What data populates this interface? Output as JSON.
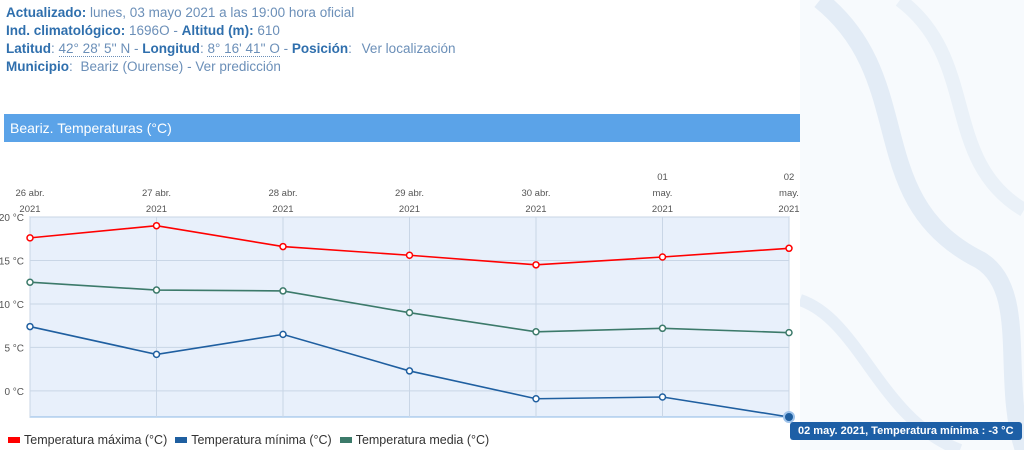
{
  "info": {
    "actualizado_label": "Actualizado",
    "actualizado_value": "lunes, 03 mayo 2021 a las 19:00 hora oficial",
    "ind_label": "Ind. climatológico",
    "ind_value": "1696O",
    "altitud_label": "Altitud (m)",
    "altitud_value": "610",
    "latitud_label": "Latitud",
    "latitud_value": "42° 28' 5'' N",
    "longitud_label": "Longitud",
    "longitud_value": "8° 16' 41'' O",
    "posicion_label": "Posición",
    "posicion_link": "Ver localización",
    "municipio_label": "Municipio",
    "municipio_value": "Beariz (Ourense)",
    "municipio_link": "Ver predicción"
  },
  "panel": {
    "title": "Beariz. Temperaturas (°C)"
  },
  "colors": {
    "max": "#ff0000",
    "min": "#1f5fa0",
    "media": "#3c7a6a",
    "plot_bg": "#e8f0fb",
    "header": "#5ba3e8"
  },
  "chart_data": {
    "type": "line",
    "categories": [
      [
        "26 abr.",
        "2021"
      ],
      [
        "27 abr.",
        "2021"
      ],
      [
        "28 abr.",
        "2021"
      ],
      [
        "29 abr.",
        "2021"
      ],
      [
        "30 abr.",
        "2021"
      ],
      [
        "01",
        "may.",
        "2021"
      ],
      [
        "02",
        "may.",
        "2021"
      ]
    ],
    "yticks": [
      "20 °C",
      "15 °C",
      "10 °C",
      "5 °C",
      "0 °C"
    ],
    "ytick_values": [
      20,
      15,
      10,
      5,
      0
    ],
    "ylim": [
      -3,
      20
    ],
    "series": [
      {
        "name": "Temperatura máxima (°C)",
        "color": "#ff0000",
        "values": [
          17.6,
          19.0,
          16.6,
          15.6,
          14.5,
          15.4,
          16.4
        ]
      },
      {
        "name": "Temperatura mínima (°C)",
        "color": "#1f5fa0",
        "values": [
          7.4,
          4.2,
          6.5,
          2.3,
          -0.9,
          -0.7,
          -3.0
        ]
      },
      {
        "name": "Temperatura media (°C)",
        "color": "#3c7a6a",
        "values": [
          12.5,
          11.6,
          11.5,
          9.0,
          6.8,
          7.2,
          6.7
        ]
      }
    ],
    "grid": true,
    "legend": "bottom-left"
  },
  "tooltip": {
    "text": "02 may. 2021, Temperatura mínima : -3 °C"
  }
}
